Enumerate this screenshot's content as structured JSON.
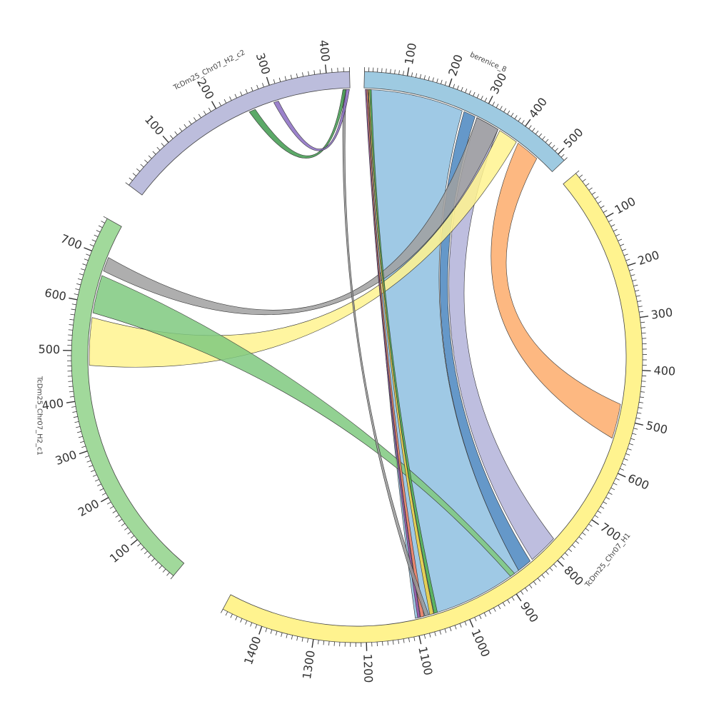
{
  "chart_data": {
    "type": "chord",
    "title": "",
    "segments": [
      {
        "id": "berenice_8",
        "label": "berenice_8",
        "length": 520,
        "color": "#9ecae1",
        "ticks": [
          "100",
          "200",
          "300",
          "400",
          "500"
        ]
      },
      {
        "id": "TcDm25_Chr07_H1",
        "label": "TcDm25_Chr07_H1",
        "length": 1480,
        "color": "#fff38f",
        "ticks": [
          "100",
          "200",
          "300",
          "400",
          "500",
          "600",
          "700",
          "800",
          "900",
          "1000",
          "1100",
          "1200",
          "1300",
          "1400"
        ]
      },
      {
        "id": "TcDm25_Chr07_H2_c1",
        "label": "TcDm25_Chr07_H2_c1",
        "length": 770,
        "color": "#a1d99b",
        "ticks": [
          "100",
          "200",
          "300",
          "400",
          "500",
          "600",
          "700"
        ]
      },
      {
        "id": "TcDm25_Chr07_H2_c2",
        "label": "TcDm25_Chr07_H2_c2",
        "length": 440,
        "color": "#bcbddc",
        "ticks": [
          "100",
          "200",
          "300",
          "400"
        ]
      }
    ],
    "links": [
      {
        "a": "berenice_8",
        "a_start": 10,
        "a_end": 250,
        "b": "TcDm25_Chr07_H1",
        "b_start": 870,
        "b_end": 1100,
        "color": "#8ec0e0"
      },
      {
        "a": "berenice_8",
        "a_start": 255,
        "a_end": 285,
        "b": "TcDm25_Chr07_H1",
        "b_start": 840,
        "b_end": 870,
        "color": "#4a86c0"
      },
      {
        "a": "berenice_8",
        "a_start": 290,
        "a_end": 350,
        "b": "TcDm25_Chr07_H1",
        "b_start": 775,
        "b_end": 835,
        "color": "#b3b3d9"
      },
      {
        "a": "berenice_8",
        "a_start": 290,
        "a_end": 350,
        "b": "TcDm25_Chr07_H2_c1",
        "b_start": 670,
        "b_end": 700,
        "color": "#a0a0a0"
      },
      {
        "a": "berenice_8",
        "a_start": 355,
        "a_end": 405,
        "b": "TcDm25_Chr07_H2_c1",
        "b_start": 470,
        "b_end": 570,
        "color": "#fff38f"
      },
      {
        "a": "berenice_8",
        "a_start": 410,
        "a_end": 470,
        "b": "TcDm25_Chr07_H1",
        "b_start": 470,
        "b_end": 540,
        "color": "#fdab6b"
      },
      {
        "a": "TcDm25_Chr07_H2_c1",
        "a_start": 580,
        "a_end": 660,
        "b": "TcDm25_Chr07_H1",
        "b_start": 880,
        "b_end": 890,
        "color": "#7fc97f"
      },
      {
        "a": "berenice_8",
        "a_start": 3,
        "a_end": 6,
        "b": "TcDm25_Chr07_H1",
        "b_start": 1090,
        "b_end": 1095,
        "color": "#984ea3"
      },
      {
        "a": "berenice_8",
        "a_start": 6,
        "a_end": 9,
        "b": "TcDm25_Chr07_H1",
        "b_start": 1082,
        "b_end": 1089,
        "color": "#f47b5c"
      },
      {
        "a": "berenice_8",
        "a_start": 11,
        "a_end": 14,
        "b": "TcDm25_Chr07_H1",
        "b_start": 1062,
        "b_end": 1070,
        "color": "#f0d03c"
      },
      {
        "a": "berenice_8",
        "a_start": 14,
        "a_end": 18,
        "b": "TcDm25_Chr07_H1",
        "b_start": 1054,
        "b_end": 1061,
        "color": "#4daf4a"
      },
      {
        "a": "TcDm25_Chr07_H2_c2",
        "a_start": 428,
        "a_end": 433,
        "b": "TcDm25_Chr07_H1",
        "b_start": 1072,
        "b_end": 1080,
        "color": "#999999"
      },
      {
        "a": "TcDm25_Chr07_H2_c2",
        "a_start": 250,
        "a_end": 262,
        "b": "TcDm25_Chr07_H2_c2",
        "b_start": 427,
        "b_end": 433,
        "color": "#3f9a4e"
      },
      {
        "a": "TcDm25_Chr07_H2_c2",
        "a_start": 298,
        "a_end": 307,
        "b": "TcDm25_Chr07_H2_c2",
        "b_start": 433,
        "b_end": 439,
        "color": "#8a6cc2"
      }
    ]
  }
}
